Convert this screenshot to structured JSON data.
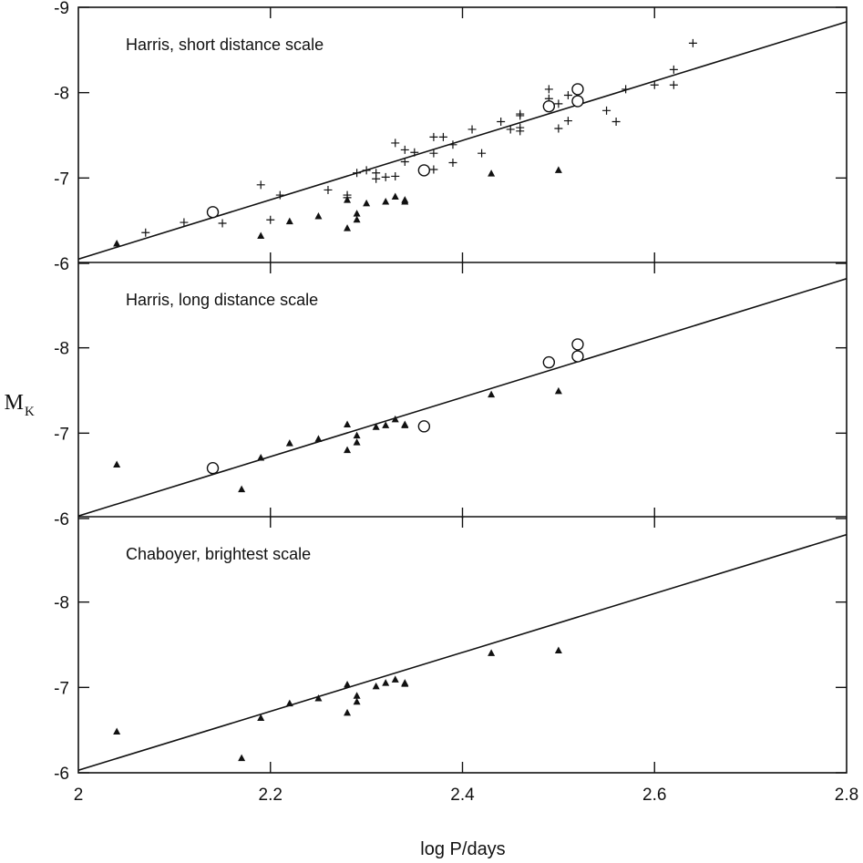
{
  "chart_data": {
    "type": "scatter",
    "xlabel": "log P/days",
    "ylabel": "M",
    "ylabel_subscript": "K",
    "xlim": [
      2.0,
      2.8
    ],
    "ylim": [
      -6,
      -9
    ],
    "xticks": [
      2,
      2.2,
      2.4,
      2.6,
      2.8
    ],
    "xtick_labels": [
      "2",
      "2.2",
      "2.4",
      "2.6",
      "2.8"
    ],
    "yticks": [
      -6,
      -7,
      -8,
      -9
    ],
    "grid": false,
    "panels": [
      {
        "label": "Harris, short distance scale",
        "ytick_labels": [
          "-6",
          "-7",
          "-8",
          "-9"
        ],
        "line": {
          "x": [
            2.0,
            2.8
          ],
          "y": [
            -6.05,
            -8.83
          ]
        },
        "series": [
          {
            "marker": "plus",
            "points": [
              [
                2.07,
                -6.36
              ],
              [
                2.11,
                -6.48
              ],
              [
                2.15,
                -6.47
              ],
              [
                2.19,
                -6.92
              ],
              [
                2.2,
                -6.51
              ],
              [
                2.21,
                -6.8
              ],
              [
                2.26,
                -6.86
              ],
              [
                2.28,
                -6.8
              ],
              [
                2.28,
                -6.77
              ],
              [
                2.29,
                -7.06
              ],
              [
                2.3,
                -7.09
              ],
              [
                2.31,
                -7.06
              ],
              [
                2.31,
                -6.99
              ],
              [
                2.32,
                -7.01
              ],
              [
                2.33,
                -7.02
              ],
              [
                2.33,
                -7.41
              ],
              [
                2.34,
                -7.19
              ],
              [
                2.34,
                -7.33
              ],
              [
                2.35,
                -7.3
              ],
              [
                2.36,
                -7.1
              ],
              [
                2.37,
                -7.48
              ],
              [
                2.37,
                -7.1
              ],
              [
                2.37,
                -7.29
              ],
              [
                2.38,
                -7.48
              ],
              [
                2.39,
                -7.39
              ],
              [
                2.39,
                -7.18
              ],
              [
                2.41,
                -7.57
              ],
              [
                2.42,
                -7.29
              ],
              [
                2.44,
                -7.66
              ],
              [
                2.45,
                -7.57
              ],
              [
                2.46,
                -7.75
              ],
              [
                2.46,
                -7.55
              ],
              [
                2.46,
                -7.59
              ],
              [
                2.46,
                -7.73
              ],
              [
                2.49,
                -7.93
              ],
              [
                2.49,
                -8.04
              ],
              [
                2.5,
                -7.87
              ],
              [
                2.5,
                -7.58
              ],
              [
                2.51,
                -7.97
              ],
              [
                2.51,
                -7.67
              ],
              [
                2.52,
                -8.06
              ],
              [
                2.55,
                -7.79
              ],
              [
                2.56,
                -7.66
              ],
              [
                2.57,
                -8.04
              ],
              [
                2.6,
                -8.09
              ],
              [
                2.62,
                -8.09
              ],
              [
                2.62,
                -8.27
              ],
              [
                2.64,
                -8.58
              ]
            ]
          },
          {
            "marker": "triangle",
            "points": [
              [
                2.04,
                -6.23
              ],
              [
                2.19,
                -6.32
              ],
              [
                2.22,
                -6.49
              ],
              [
                2.25,
                -6.55
              ],
              [
                2.28,
                -6.41
              ],
              [
                2.28,
                -6.74
              ],
              [
                2.29,
                -6.51
              ],
              [
                2.29,
                -6.58
              ],
              [
                2.3,
                -6.7
              ],
              [
                2.32,
                -6.72
              ],
              [
                2.33,
                -6.78
              ],
              [
                2.34,
                -6.72
              ],
              [
                2.34,
                -6.74
              ],
              [
                2.43,
                -7.05
              ],
              [
                2.5,
                -7.09
              ]
            ]
          },
          {
            "marker": "circle",
            "points": [
              [
                2.14,
                -6.6
              ],
              [
                2.36,
                -7.09
              ],
              [
                2.49,
                -7.84
              ],
              [
                2.52,
                -7.9
              ],
              [
                2.52,
                -8.04
              ]
            ]
          }
        ]
      },
      {
        "label": "Harris, long distance scale",
        "ytick_labels": [
          "-6",
          "-7",
          "-8",
          ""
        ],
        "line": {
          "x": [
            2.0,
            2.8
          ],
          "y": [
            -6.03,
            -8.81
          ]
        },
        "series": [
          {
            "marker": "triangle",
            "points": [
              [
                2.04,
                -6.63
              ],
              [
                2.17,
                -6.34
              ],
              [
                2.19,
                -6.71
              ],
              [
                2.22,
                -6.88
              ],
              [
                2.25,
                -6.93
              ],
              [
                2.28,
                -6.8
              ],
              [
                2.28,
                -7.1
              ],
              [
                2.29,
                -6.89
              ],
              [
                2.29,
                -6.97
              ],
              [
                2.31,
                -7.07
              ],
              [
                2.32,
                -7.09
              ],
              [
                2.33,
                -7.16
              ],
              [
                2.34,
                -7.09
              ],
              [
                2.34,
                -7.1
              ],
              [
                2.43,
                -7.45
              ],
              [
                2.5,
                -7.49
              ]
            ]
          },
          {
            "marker": "circle",
            "points": [
              [
                2.14,
                -6.59
              ],
              [
                2.36,
                -7.08
              ],
              [
                2.49,
                -7.83
              ],
              [
                2.52,
                -7.9
              ],
              [
                2.52,
                -8.04
              ]
            ]
          }
        ]
      },
      {
        "label": "Chaboyer, brightest scale",
        "ytick_labels": [
          "-6",
          "-7",
          "-8",
          ""
        ],
        "line": {
          "x": [
            2.0,
            2.8
          ],
          "y": [
            -6.03,
            -8.79
          ]
        },
        "series": [
          {
            "marker": "triangle",
            "points": [
              [
                2.04,
                -6.48
              ],
              [
                2.17,
                -6.17
              ],
              [
                2.19,
                -6.64
              ],
              [
                2.22,
                -6.81
              ],
              [
                2.25,
                -6.87
              ],
              [
                2.28,
                -6.7
              ],
              [
                2.28,
                -7.03
              ],
              [
                2.29,
                -6.83
              ],
              [
                2.29,
                -6.9
              ],
              [
                2.31,
                -7.01
              ],
              [
                2.32,
                -7.05
              ],
              [
                2.33,
                -7.09
              ],
              [
                2.34,
                -7.04
              ],
              [
                2.34,
                -7.05
              ],
              [
                2.43,
                -7.4
              ],
              [
                2.5,
                -7.43
              ]
            ]
          }
        ]
      }
    ]
  }
}
